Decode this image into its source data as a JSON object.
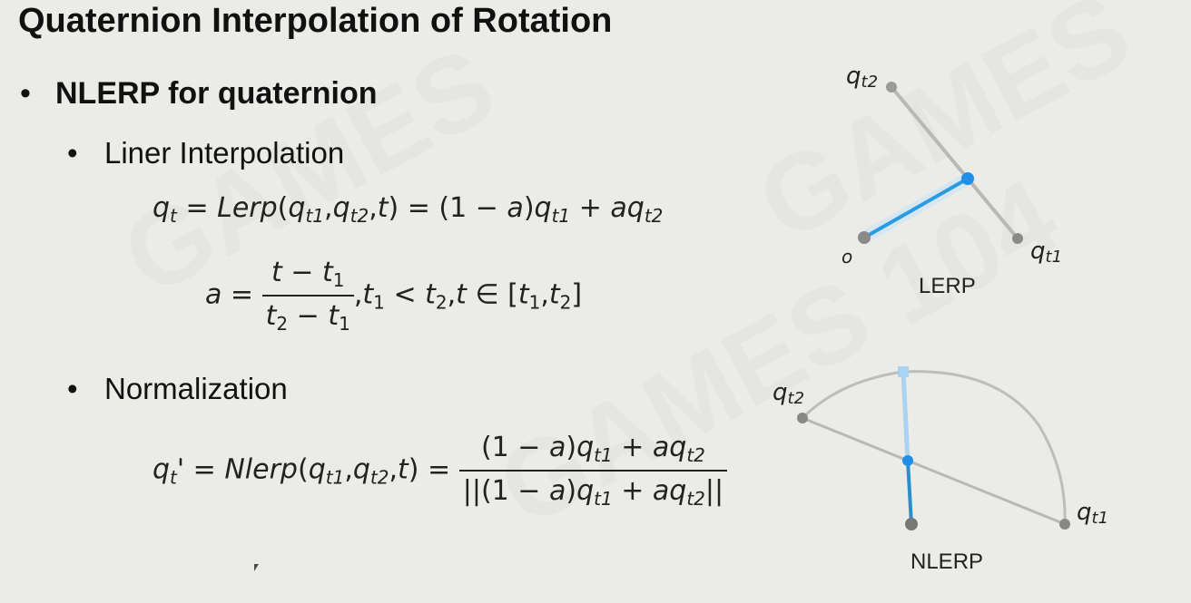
{
  "slide": {
    "title": "Quaternion Interpolation of Rotation",
    "bullet_glyph": "•",
    "main_bullet": "NLERP for quaternion",
    "sub_bullet_1": "Liner Interpolation",
    "sub_bullet_2": "Normalization"
  },
  "equations": {
    "eq1": "q_t = Lerp(q_t1, q_t2, t) = (1 − a) q_t1 + a q_t2",
    "eq2": "a = (t − t_1)/(t_2 − t_1), t_1 < t_2, t ∈ [t_1, t_2]",
    "eq3": "q_t' = Nlerp(q_t1, q_t2, t) = ((1 − a) q_t1 + a q_t2) / ||(1 − a) q_t1 + a q_t2||"
  },
  "diagrams": {
    "lerp": {
      "caption": "LERP",
      "origin_label": "o",
      "q_label": "q",
      "q1_sub": "t1",
      "q2_sub": "t2"
    },
    "nlerp": {
      "caption": "NLERP",
      "q_label": "q",
      "q1_sub": "t1",
      "q2_sub": "t2"
    }
  },
  "colors": {
    "background": "#ebebe7",
    "highlight_blue": "#2a9be0",
    "line_gray": "#b8b8b8",
    "point_gray": "#888888"
  }
}
